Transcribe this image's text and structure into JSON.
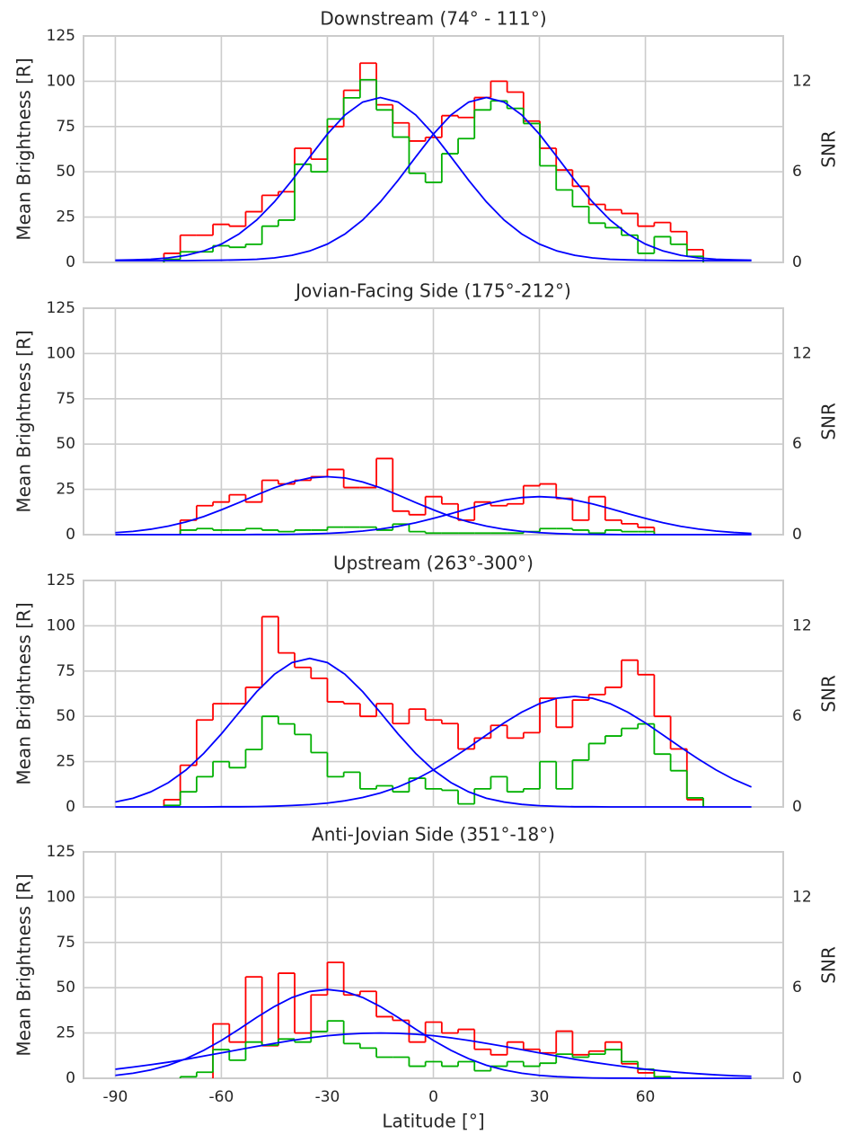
{
  "chart_data": [
    {
      "type": "histogram",
      "title": "Downstream (74° - 111°)",
      "ylabel": "Mean Brightness [R]",
      "y2label": "SNR",
      "xlim": [
        -99,
        99
      ],
      "xticks": [
        -90,
        -60,
        -30,
        0,
        30,
        60
      ],
      "ylim": [
        0,
        125
      ],
      "yticks": [
        0,
        25,
        50,
        75,
        100,
        125
      ],
      "y2lim": [
        0,
        15
      ],
      "y2ticks": [
        0,
        6,
        12
      ],
      "grid": true,
      "bins": [
        -76.25,
        -71.625,
        -67,
        -62.375,
        -57.75,
        -53.125,
        -48.5,
        -43.875,
        -39.25,
        -34.625,
        -30,
        -25.375,
        -20.75,
        -16.125,
        -11.5,
        -6.875,
        -2.25,
        2.375,
        7,
        11.625,
        16.25,
        20.875,
        25.5,
        30.125,
        34.75,
        39.375,
        44,
        48.625,
        53.25,
        57.875,
        62.5,
        67.125,
        71.75,
        76.375
      ],
      "series": [
        {
          "color": "#ff0000",
          "values": [
            5,
            15,
            15,
            21,
            20,
            28,
            37,
            39,
            63,
            57,
            75,
            95,
            110,
            87,
            77,
            67,
            69,
            81,
            80,
            91,
            100,
            94,
            78,
            63,
            51,
            42,
            32,
            29,
            27,
            20,
            22,
            17,
            7
          ]
        },
        {
          "color": "#00b000",
          "axis": "y2",
          "values": [
            0.2,
            0.7,
            0.7,
            1.1,
            1,
            1.2,
            2.4,
            2.8,
            6.5,
            6,
            9.5,
            10.9,
            12.1,
            10.1,
            8.3,
            5.9,
            5.3,
            7.2,
            8.2,
            10.1,
            10.7,
            10.2,
            9.2,
            6.4,
            4.8,
            3.7,
            2.6,
            2.3,
            1.8,
            0.6,
            1.7,
            1.2,
            0.4
          ]
        }
      ],
      "curves": {
        "x": [
          -90,
          -85,
          -80,
          -75,
          -70,
          -65,
          -60,
          -55,
          -50,
          -45,
          -40,
          -35,
          -30,
          -25,
          -20,
          -15,
          -10,
          -5,
          0,
          5,
          10,
          15,
          20,
          25,
          30,
          35,
          40,
          45,
          50,
          55,
          60,
          65,
          70,
          75,
          80,
          85,
          90
        ],
        "series": [
          {
            "color": "#0000ff",
            "values": [
              1.2,
              1.4,
              1.7,
              2.5,
              3.9,
              6.3,
              10.1,
              15.7,
              23.4,
              33.4,
              45.3,
              58.2,
              70.8,
              81.4,
              88.5,
              91,
              88.5,
              81.4,
              70.8,
              58.2,
              45.3,
              33.4,
              23.4,
              15.7,
              10.1,
              6.3,
              3.9,
              2.5,
              1.7,
              1.4,
              1.2,
              1.1,
              1,
              1,
              1,
              1,
              1
            ]
          },
          {
            "color": "#0000ff",
            "values": [
              1,
              1,
              1,
              1,
              1,
              1.1,
              1.2,
              1.4,
              1.7,
              2.5,
              3.9,
              6.3,
              10.1,
              15.7,
              23.4,
              33.4,
              45.3,
              58.2,
              70.8,
              81.4,
              88.5,
              91,
              88.5,
              81.4,
              70.8,
              58.2,
              45.3,
              33.4,
              23.4,
              15.7,
              10.1,
              6.3,
              3.9,
              2.5,
              1.7,
              1.4,
              1.2
            ]
          }
        ]
      }
    },
    {
      "type": "histogram",
      "title": "Jovian-Facing Side (175°-212°)",
      "ylabel": "Mean Brightness [R]",
      "y2label": "SNR",
      "xlim": [
        -99,
        99
      ],
      "xticks": [
        -90,
        -60,
        -30,
        0,
        30,
        60
      ],
      "ylim": [
        0,
        125
      ],
      "yticks": [
        0,
        25,
        50,
        75,
        100,
        125
      ],
      "y2lim": [
        0,
        15
      ],
      "y2ticks": [
        0,
        6,
        12
      ],
      "grid": true,
      "bins": [
        -76.25,
        -71.625,
        -67,
        -62.375,
        -57.75,
        -53.125,
        -48.5,
        -43.875,
        -39.25,
        -34.625,
        -30,
        -25.375,
        -20.75,
        -16.125,
        -11.5,
        -6.875,
        -2.25,
        2.375,
        7,
        11.625,
        16.25,
        20.875,
        25.5,
        30.125,
        34.75,
        39.375,
        44,
        48.625,
        53.25,
        57.875,
        62.5,
        67.125,
        71.75,
        76.375
      ],
      "series": [
        {
          "color": "#ff0000",
          "values": [
            null,
            8,
            16,
            18,
            22,
            18,
            30,
            28,
            30,
            32,
            36,
            26,
            26,
            42,
            13,
            11,
            21,
            17,
            8,
            18,
            16,
            17,
            27,
            28,
            20,
            8,
            21,
            8,
            6,
            4,
            null,
            null,
            null
          ]
        },
        {
          "color": "#00b000",
          "axis": "y2",
          "values": [
            null,
            0.3,
            0.4,
            0.3,
            0.3,
            0.4,
            0.3,
            0.2,
            0.3,
            0.3,
            0.5,
            0.5,
            0.5,
            0.3,
            0.7,
            0.2,
            0.1,
            0.1,
            0.1,
            0.1,
            0.1,
            0.1,
            0.2,
            0.4,
            0.4,
            0.3,
            0.1,
            0.3,
            0.2,
            0.2,
            null,
            null,
            null
          ]
        }
      ],
      "curves": {
        "x": [
          -90,
          -85,
          -80,
          -75,
          -70,
          -65,
          -60,
          -55,
          -50,
          -45,
          -40,
          -35,
          -30,
          -25,
          -20,
          -15,
          -10,
          -5,
          0,
          5,
          10,
          15,
          20,
          25,
          30,
          35,
          40,
          45,
          50,
          55,
          60,
          65,
          70,
          75,
          80,
          85,
          90
        ],
        "series": [
          {
            "color": "#0000ff",
            "values": [
              1.1,
              1.8,
              3,
              4.7,
              7,
              10,
              13.7,
              17.7,
              21.9,
              25.9,
              29.1,
              31.3,
              32,
              31.3,
              29.1,
              25.9,
              21.9,
              17.7,
              13.7,
              10,
              7,
              4.7,
              3,
              1.8,
              1.1,
              0.6,
              0.3,
              0.2,
              0.1,
              0,
              0,
              0,
              0,
              0,
              0,
              0,
              0
            ]
          },
          {
            "color": "#0000ff",
            "values": [
              0,
              0,
              0,
              0,
              0,
              0,
              0,
              0,
              0.1,
              0.1,
              0.2,
              0.4,
              0.7,
              1.2,
              2,
              3.1,
              4.6,
              6.6,
              9,
              11.6,
              14.4,
              17,
              19.1,
              20.5,
              21,
              20.5,
              19.1,
              17,
              14.4,
              11.6,
              9,
              6.6,
              4.6,
              3.1,
              2,
              1.2,
              0.7
            ]
          }
        ]
      }
    },
    {
      "type": "histogram",
      "title": "Upstream (263°-300°)",
      "ylabel": "Mean Brightness [R]",
      "y2label": "SNR",
      "xlim": [
        -99,
        99
      ],
      "xticks": [
        -90,
        -60,
        -30,
        0,
        30,
        60
      ],
      "ylim": [
        0,
        125
      ],
      "yticks": [
        0,
        25,
        50,
        75,
        100,
        125
      ],
      "y2lim": [
        0,
        15
      ],
      "y2ticks": [
        0,
        6,
        12
      ],
      "grid": true,
      "bins": [
        -76.25,
        -71.625,
        -67,
        -62.375,
        -57.75,
        -53.125,
        -48.5,
        -43.875,
        -39.25,
        -34.625,
        -30,
        -25.375,
        -20.75,
        -16.125,
        -11.5,
        -6.875,
        -2.25,
        2.375,
        7,
        11.625,
        16.25,
        20.875,
        25.5,
        30.125,
        34.75,
        39.375,
        44,
        48.625,
        53.25,
        57.875,
        62.5,
        67.125,
        71.75,
        76.375
      ],
      "series": [
        {
          "color": "#ff0000",
          "values": [
            4,
            23,
            48,
            57,
            57,
            66,
            105,
            85,
            77,
            71,
            58,
            57,
            50,
            57,
            46,
            54,
            48,
            46,
            32,
            38,
            45,
            38,
            41,
            60,
            44,
            59,
            62,
            66,
            81,
            73,
            50,
            32,
            4
          ]
        },
        {
          "color": "#00b000",
          "axis": "y2",
          "values": [
            0.1,
            1,
            2,
            3,
            2.6,
            3.8,
            6,
            5.5,
            4.8,
            3.6,
            2,
            2.3,
            1.2,
            1.4,
            1,
            1.9,
            1.2,
            1.1,
            0.2,
            1.2,
            2,
            1,
            1.2,
            3,
            1.2,
            3.1,
            4.2,
            4.7,
            5.2,
            5.5,
            3.5,
            2.4,
            0.6
          ]
        }
      ],
      "curves": {
        "x": [
          -90,
          -85,
          -80,
          -75,
          -70,
          -65,
          -60,
          -55,
          -50,
          -45,
          -40,
          -35,
          -30,
          -25,
          -20,
          -15,
          -10,
          -5,
          0,
          5,
          10,
          15,
          20,
          25,
          30,
          35,
          40,
          45,
          50,
          55,
          60,
          65,
          70,
          75,
          80,
          85,
          90
        ],
        "series": [
          {
            "color": "#0000ff",
            "values": [
              2.7,
              4.8,
              8.3,
              13.4,
              20.4,
              29.5,
              40.3,
              52.1,
              63.6,
              73.2,
              79.7,
              82,
              79.7,
              73.2,
              63.6,
              52.1,
              40.3,
              29.5,
              20.4,
              13.4,
              8.3,
              4.8,
              2.7,
              1.4,
              0.7,
              0.3,
              0.1,
              0.1,
              0,
              0,
              0,
              0,
              0,
              0,
              0,
              0,
              0
            ]
          },
          {
            "color": "#0000ff",
            "values": [
              0,
              0,
              0,
              0,
              0,
              0,
              0.1,
              0.1,
              0.2,
              0.4,
              0.8,
              1.3,
              2.1,
              3.4,
              5.2,
              7.7,
              11,
              15.2,
              20.4,
              26.4,
              32.9,
              39.7,
              46.4,
              52.3,
              57,
              60,
              61,
              60,
              57,
              52.3,
              46.4,
              39.7,
              32.9,
              26.4,
              20.4,
              15.2,
              11
            ]
          }
        ]
      }
    },
    {
      "type": "histogram",
      "title": "Anti-Jovian Side (351°-18°)",
      "ylabel": "Mean Brightness [R]",
      "y2label": "SNR",
      "xlabel": "Latitude [°]",
      "xlim": [
        -99,
        99
      ],
      "xticks": [
        -90,
        -60,
        -30,
        0,
        30,
        60
      ],
      "ylim": [
        0,
        125
      ],
      "yticks": [
        0,
        25,
        50,
        75,
        100,
        125
      ],
      "y2lim": [
        0,
        15
      ],
      "y2ticks": [
        0,
        6,
        12
      ],
      "grid": true,
      "bins": [
        -76.25,
        -71.625,
        -67,
        -62.375,
        -57.75,
        -53.125,
        -48.5,
        -43.875,
        -39.25,
        -34.625,
        -30,
        -25.375,
        -20.75,
        -16.125,
        -11.5,
        -6.875,
        -2.25,
        2.375,
        7,
        11.625,
        16.25,
        20.875,
        25.5,
        30.125,
        34.75,
        39.375,
        44,
        48.625,
        53.25,
        57.875,
        62.5,
        67.125,
        71.75,
        76.375
      ],
      "series": [
        {
          "color": "#ff0000",
          "values": [
            null,
            null,
            null,
            30,
            20,
            56,
            18,
            58,
            25,
            46,
            64,
            46,
            48,
            34,
            32,
            20,
            31,
            25,
            27,
            16,
            13,
            20,
            16,
            14,
            26,
            13,
            15,
            20,
            8,
            3,
            null,
            null,
            null
          ]
        },
        {
          "color": "#00b000",
          "axis": "y2",
          "values": [
            null,
            0.1,
            0.4,
            1.9,
            1.2,
            2.4,
            2.2,
            2.6,
            2.4,
            3.1,
            3.8,
            2.3,
            2,
            1.4,
            1.4,
            0.8,
            1.1,
            0.8,
            1.1,
            0.5,
            0.8,
            1.1,
            0.8,
            1,
            1.6,
            1.4,
            1.6,
            1.9,
            1.1,
            0.6,
            0.1,
            null,
            null
          ]
        }
      ],
      "curves": {
        "x": [
          -90,
          -85,
          -80,
          -75,
          -70,
          -65,
          -60,
          -55,
          -50,
          -45,
          -40,
          -35,
          -30,
          -25,
          -20,
          -15,
          -10,
          -5,
          0,
          5,
          10,
          15,
          20,
          25,
          30,
          35,
          40,
          45,
          50,
          55,
          60,
          65,
          70,
          75,
          80,
          85,
          90
        ],
        "series": [
          {
            "color": "#0000ff",
            "values": [
              1.6,
              2.8,
              4.6,
              7.2,
              10.8,
              15.4,
              20.9,
              27.1,
              33.6,
              39.6,
              44.6,
              47.9,
              49,
              47.9,
              44.6,
              39.6,
              33.6,
              27.1,
              20.9,
              15.4,
              10.8,
              7.2,
              4.6,
              2.8,
              1.6,
              0.9,
              0.5,
              0.2,
              0.1,
              0.1,
              0,
              0,
              0,
              0,
              0,
              0,
              0
            ]
          },
          {
            "color": "#0000ff",
            "values": [
              5,
              6.2,
              7.5,
              8.9,
              10.5,
              12.3,
              14,
              15.8,
              17.6,
              19.3,
              20.9,
              22.3,
              23.5,
              24.3,
              24.8,
              25,
              24.8,
              24.3,
              23.5,
              22.3,
              20.9,
              19.3,
              17.6,
              15.8,
              14,
              12.3,
              10.5,
              8.9,
              7.5,
              6.2,
              5,
              4,
              3.2,
              2.5,
              1.9,
              1.4,
              1.1
            ]
          }
        ]
      }
    }
  ]
}
